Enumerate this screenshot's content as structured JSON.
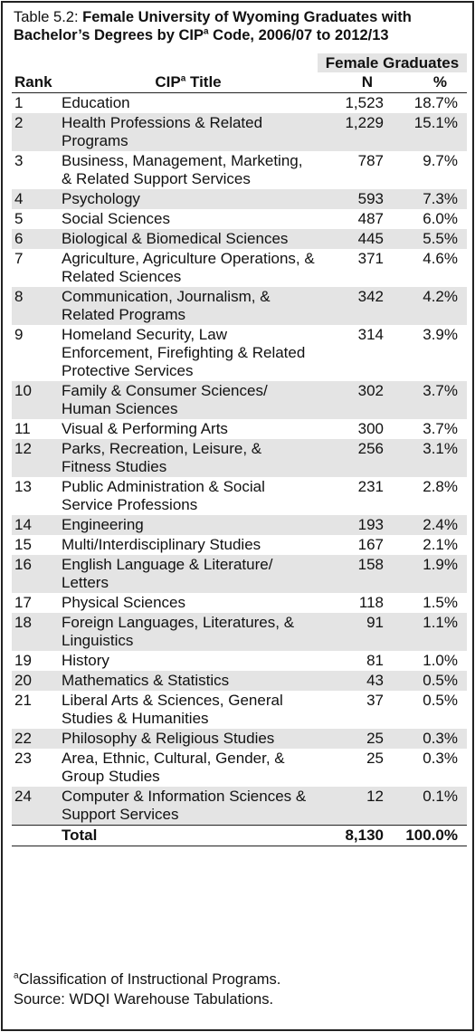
{
  "title": {
    "label": "Table 5.2:",
    "text": "Female University of Wyoming Graduates with Bachelor’s Degrees by CIP",
    "sup": "a",
    "text_end": " Code, 2006/07 to 2012/13"
  },
  "header": {
    "group": "Female Graduates",
    "rank": "Rank",
    "cip": "CIP",
    "cip_sup": "a",
    "cip_rest": " Title",
    "n": "N",
    "pct": "%"
  },
  "table": {
    "rows": [
      [
        "1",
        "Education",
        "1,523",
        "18.7%"
      ],
      [
        "2",
        "Health Professions & Related Programs",
        "1,229",
        "15.1%"
      ],
      [
        "3",
        "Business, Management, Marketing, & Related Support Services",
        "787",
        "9.7%"
      ],
      [
        "4",
        "Psychology",
        "593",
        "7.3%"
      ],
      [
        "5",
        "Social Sciences",
        "487",
        "6.0%"
      ],
      [
        "6",
        "Biological & Biomedical Sciences",
        "445",
        "5.5%"
      ],
      [
        "7",
        "Agriculture, Agriculture Operations, & Related Sciences",
        "371",
        "4.6%"
      ],
      [
        "8",
        "Communication, Journalism, & Related Programs",
        "342",
        "4.2%"
      ],
      [
        "9",
        "Homeland Security, Law Enforcement, Firefighting & Related Protective Services",
        "314",
        "3.9%"
      ],
      [
        "10",
        "Family & Consumer Sciences/ Human Sciences",
        "302",
        "3.7%"
      ],
      [
        "11",
        "Visual & Performing Arts",
        "300",
        "3.7%"
      ],
      [
        "12",
        "Parks, Recreation, Leisure, & Fitness Studies",
        "256",
        "3.1%"
      ],
      [
        "13",
        "Public Administration & Social Service Professions",
        "231",
        "2.8%"
      ],
      [
        "14",
        "Engineering",
        "193",
        "2.4%"
      ],
      [
        "15",
        "Multi/Interdisciplinary Studies",
        "167",
        "2.1%"
      ],
      [
        "16",
        "English Language & Literature/ Letters",
        "158",
        "1.9%"
      ],
      [
        "17",
        "Physical Sciences",
        "118",
        "1.5%"
      ],
      [
        "18",
        "Foreign Languages, Literatures, & Linguistics",
        "91",
        "1.1%"
      ],
      [
        "19",
        "History",
        "81",
        "1.0%"
      ],
      [
        "20",
        "Mathematics & Statistics",
        "43",
        "0.5%"
      ],
      [
        "21",
        "Liberal Arts & Sciences, General Studies & Humanities",
        "37",
        "0.5%"
      ],
      [
        "22",
        "Philosophy & Religious Studies",
        "25",
        "0.3%"
      ],
      [
        "23",
        "Area, Ethnic, Cultural, Gender, & Group Studies",
        "25",
        "0.3%"
      ],
      [
        "24",
        "Computer & Information Sciences & Support Services",
        "12",
        "0.1%"
      ]
    ],
    "total": [
      "Total",
      "8,130",
      "100.0%"
    ]
  },
  "footnote": {
    "sup": "a",
    "text": "Classification of Instructional Programs."
  },
  "source": "Source: WDQI Warehouse Tabulations."
}
